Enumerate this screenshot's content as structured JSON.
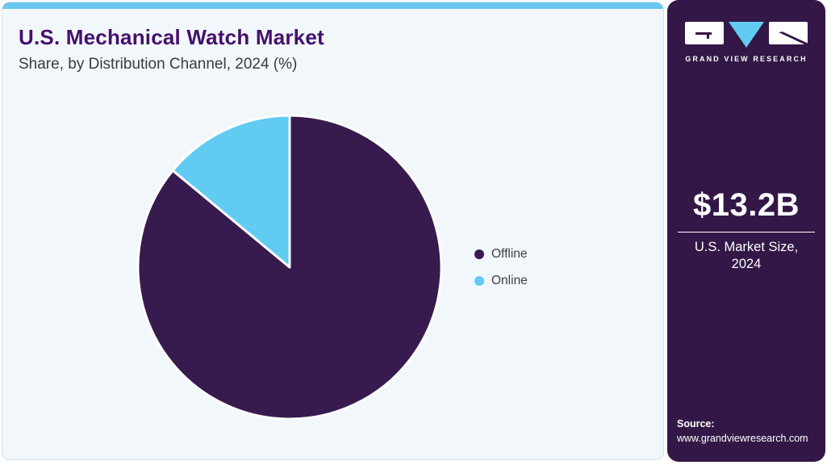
{
  "header": {
    "title": "U.S. Mechanical Watch Market",
    "subtitle": "Share, by Distribution Channel, 2024 (%)"
  },
  "chart_data": {
    "type": "pie",
    "title": "U.S. Mechanical Watch Market Share, by Distribution Channel, 2024 (%)",
    "categories": [
      "Offline",
      "Online"
    ],
    "values": [
      86,
      14
    ],
    "unit": "%",
    "colors": [
      "#371a4e",
      "#62cbf2"
    ],
    "start_angle": 0,
    "direction": "clockwise",
    "legend_position": "right",
    "slice_border_color": "#ffffff"
  },
  "sidebar": {
    "brand": "GRAND VIEW RESEARCH",
    "market_size_value": "$13.2B",
    "market_size_label_line1": "U.S. Market Size,",
    "market_size_label_line2": "2024",
    "source_label": "Source:",
    "source_url": "www.grandviewresearch.com"
  },
  "theme": {
    "card_background": "#f2f7fb",
    "topbar_color": "#68c8f0",
    "title_color": "#45106b",
    "subtitle_color": "#3b3b3b",
    "sidebar_background": "#331847",
    "offline_color": "#371a4e",
    "online_color": "#62cbf2"
  }
}
